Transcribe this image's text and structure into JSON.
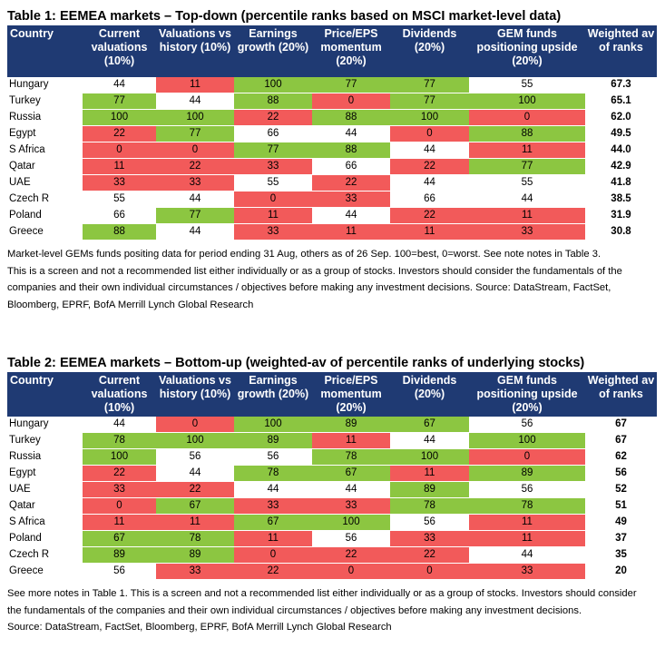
{
  "table1": {
    "title": "Table 1: EEMEA markets – Top-down (percentile ranks based on MSCI market-level data)",
    "headers": [
      "Country",
      "Current valuations (10%)",
      "Valuations vs history (10%)",
      "Earnings growth (20%)",
      "Price/EPS momentum (20%)",
      "Dividends (20%)",
      "GEM funds positioning upside (20%)",
      "Weighted av of ranks"
    ],
    "rows": [
      {
        "country": "Hungary",
        "values": [
          "44",
          "11",
          "100",
          "77",
          "77",
          "55"
        ],
        "colors": [
          "w",
          "r",
          "g",
          "g",
          "g",
          "w"
        ],
        "wavg": "67.3"
      },
      {
        "country": "Turkey",
        "values": [
          "77",
          "44",
          "88",
          "0",
          "77",
          "100"
        ],
        "colors": [
          "g",
          "w",
          "g",
          "r",
          "g",
          "g"
        ],
        "wavg": "65.1"
      },
      {
        "country": "Russia",
        "values": [
          "100",
          "100",
          "22",
          "88",
          "100",
          "0"
        ],
        "colors": [
          "g",
          "g",
          "r",
          "g",
          "g",
          "r"
        ],
        "wavg": "62.0"
      },
      {
        "country": "Egypt",
        "values": [
          "22",
          "77",
          "66",
          "44",
          "0",
          "88"
        ],
        "colors": [
          "r",
          "g",
          "w",
          "w",
          "r",
          "g"
        ],
        "wavg": "49.5"
      },
      {
        "country": "S Africa",
        "values": [
          "0",
          "0",
          "77",
          "88",
          "44",
          "11"
        ],
        "colors": [
          "r",
          "r",
          "g",
          "g",
          "w",
          "r"
        ],
        "wavg": "44.0"
      },
      {
        "country": "Qatar",
        "values": [
          "11",
          "22",
          "33",
          "66",
          "22",
          "77"
        ],
        "colors": [
          "r",
          "r",
          "r",
          "w",
          "r",
          "g"
        ],
        "wavg": "42.9"
      },
      {
        "country": "UAE",
        "values": [
          "33",
          "33",
          "55",
          "22",
          "44",
          "55"
        ],
        "colors": [
          "r",
          "r",
          "w",
          "r",
          "w",
          "w"
        ],
        "wavg": "41.8"
      },
      {
        "country": "Czech R",
        "values": [
          "55",
          "44",
          "0",
          "33",
          "66",
          "44"
        ],
        "colors": [
          "w",
          "w",
          "r",
          "r",
          "w",
          "w"
        ],
        "wavg": "38.5"
      },
      {
        "country": "Poland",
        "values": [
          "66",
          "77",
          "11",
          "44",
          "22",
          "11"
        ],
        "colors": [
          "w",
          "g",
          "r",
          "w",
          "r",
          "r"
        ],
        "wavg": "31.9"
      },
      {
        "country": "Greece",
        "values": [
          "88",
          "44",
          "33",
          "11",
          "11",
          "33"
        ],
        "colors": [
          "g",
          "w",
          "r",
          "r",
          "r",
          "r"
        ],
        "wavg": "30.8"
      }
    ],
    "notes": [
      "Market-level GEMs funds positing data for period ending 31 Aug, others as of 26 Sep. 100=best, 0=worst. See note notes in Table 3.",
      "This is a screen and not a recommended list either individually or as a group of stocks. Investors should consider the fundamentals of the",
      "companies and their own individual circumstances / objectives before making any investment decisions. Source: DataStream, FactSet,",
      "Bloomberg, EPRF, BofA Merrill Lynch Global Research"
    ]
  },
  "table2": {
    "title": "Table 2: EEMEA markets – Bottom-up (weighted-av of percentile ranks of underlying stocks)",
    "headers": [
      "Country",
      "Current valuations (10%)",
      "Valuations vs history (10%)",
      "Earnings growth (20%)",
      "Price/EPS momentum (20%)",
      "Dividends (20%)",
      "GEM funds positioning upside (20%)",
      "Weighted av of ranks"
    ],
    "rows": [
      {
        "country": "Hungary",
        "values": [
          "44",
          "0",
          "100",
          "89",
          "67",
          "56"
        ],
        "colors": [
          "w",
          "r",
          "g",
          "g",
          "g",
          "w"
        ],
        "wavg": "67"
      },
      {
        "country": "Turkey",
        "values": [
          "78",
          "100",
          "89",
          "11",
          "44",
          "100"
        ],
        "colors": [
          "g",
          "g",
          "g",
          "r",
          "w",
          "g"
        ],
        "wavg": "67"
      },
      {
        "country": "Russia",
        "values": [
          "100",
          "56",
          "56",
          "78",
          "100",
          "0"
        ],
        "colors": [
          "g",
          "w",
          "w",
          "g",
          "g",
          "r"
        ],
        "wavg": "62"
      },
      {
        "country": "Egypt",
        "values": [
          "22",
          "44",
          "78",
          "67",
          "11",
          "89"
        ],
        "colors": [
          "r",
          "w",
          "g",
          "g",
          "r",
          "g"
        ],
        "wavg": "56"
      },
      {
        "country": "UAE",
        "values": [
          "33",
          "22",
          "44",
          "44",
          "89",
          "56"
        ],
        "colors": [
          "r",
          "r",
          "w",
          "w",
          "g",
          "w"
        ],
        "wavg": "52"
      },
      {
        "country": "Qatar",
        "values": [
          "0",
          "67",
          "33",
          "33",
          "78",
          "78"
        ],
        "colors": [
          "r",
          "g",
          "r",
          "r",
          "g",
          "g"
        ],
        "wavg": "51"
      },
      {
        "country": "S Africa",
        "values": [
          "11",
          "11",
          "67",
          "100",
          "56",
          "11"
        ],
        "colors": [
          "r",
          "r",
          "g",
          "g",
          "w",
          "r"
        ],
        "wavg": "49"
      },
      {
        "country": "Poland",
        "values": [
          "67",
          "78",
          "11",
          "56",
          "33",
          "11"
        ],
        "colors": [
          "g",
          "g",
          "r",
          "w",
          "r",
          "r"
        ],
        "wavg": "37"
      },
      {
        "country": "Czech R",
        "values": [
          "89",
          "89",
          "0",
          "22",
          "22",
          "44"
        ],
        "colors": [
          "g",
          "g",
          "r",
          "r",
          "r",
          "w"
        ],
        "wavg": "35"
      },
      {
        "country": "Greece",
        "values": [
          "56",
          "33",
          "22",
          "0",
          "0",
          "33"
        ],
        "colors": [
          "w",
          "r",
          "r",
          "r",
          "r",
          "r"
        ],
        "wavg": "20"
      }
    ],
    "notes": [
      "See more notes in Table 1. This is a screen and not a recommended list either individually or as a group of stocks. Investors should consider",
      "the fundamentals of the companies and their own individual circumstances / objectives before making any investment decisions.",
      "Source: DataStream, FactSet, Bloomberg, EPRF, BofA Merrill Lynch Global Research"
    ]
  },
  "colors": {
    "header_bg": "#1f3a73",
    "good": "#8cc641",
    "bad": "#f25a5a",
    "neutral": "#ffffff"
  }
}
